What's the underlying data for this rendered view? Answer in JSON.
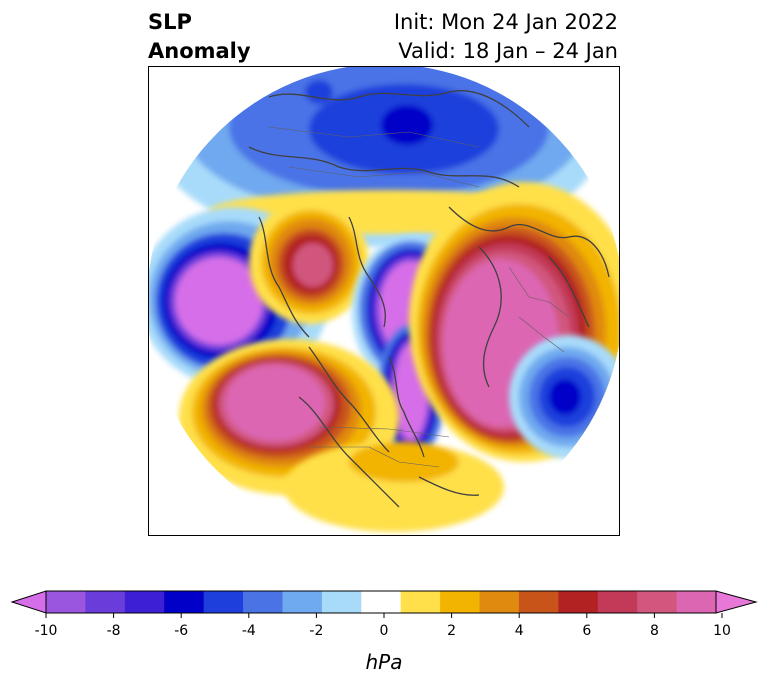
{
  "header": {
    "title_line1": "SLP",
    "title_line2": "Anomaly",
    "init_text": "Init: Mon 24 Jan 2022",
    "valid_text": "Valid: 18 Jan – 24 Jan"
  },
  "colorbar": {
    "unit": "hPa",
    "ticks": [
      "-10",
      "-8",
      "-6",
      "-4",
      "-2",
      "0",
      "2",
      "4",
      "6",
      "8",
      "10"
    ],
    "colors": [
      "#d56ee8",
      "#9b56e0",
      "#6a3ddb",
      "#3d1fd4",
      "#0000c8",
      "#1f3fdc",
      "#4a73e6",
      "#6fa9ef",
      "#a8dbfa",
      "#ffffff",
      "#ffe04a",
      "#f2b400",
      "#e08a10",
      "#c9541a",
      "#b22222",
      "#c23a58",
      "#d1577e",
      "#dc66b2",
      "#e878d8"
    ]
  },
  "map": {
    "projection": "north-polar-stereographic",
    "field": "sea-level-pressure-anomaly"
  }
}
